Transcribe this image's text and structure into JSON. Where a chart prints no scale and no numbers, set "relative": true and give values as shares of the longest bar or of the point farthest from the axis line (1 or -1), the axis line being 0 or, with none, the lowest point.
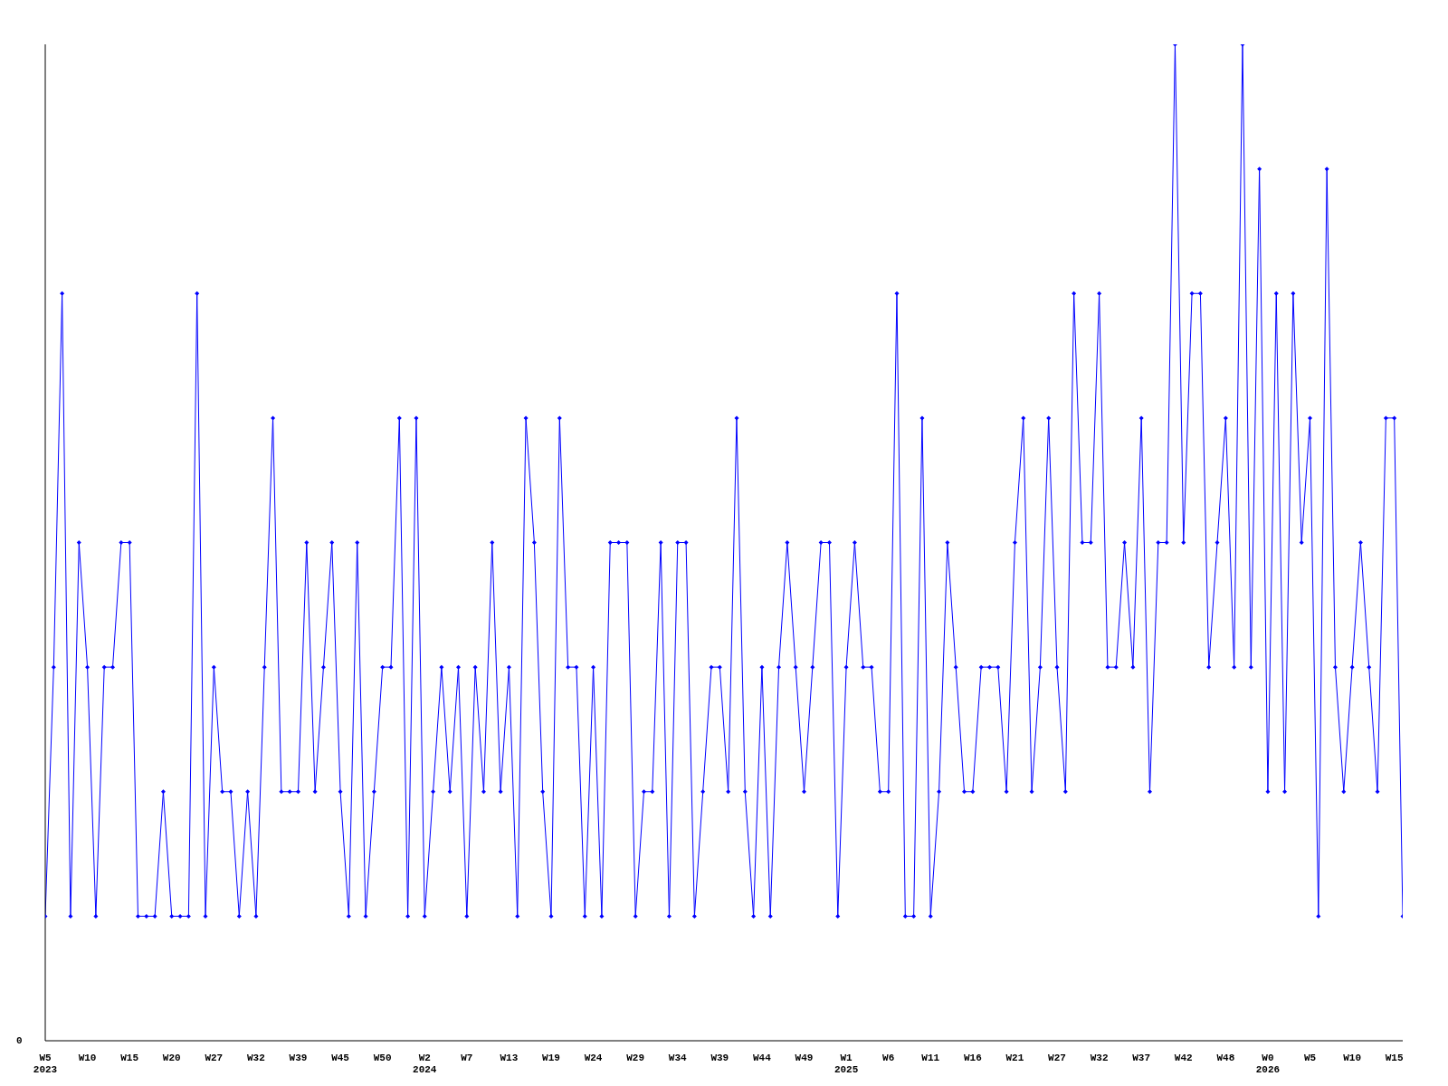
{
  "chart_data": {
    "type": "line",
    "relative": true,
    "marker": "diamond",
    "line_style": "solid",
    "annotations": [
      "0"
    ],
    "categories": [
      "W5\n2023",
      null,
      null,
      null,
      null,
      "W10",
      null,
      null,
      null,
      null,
      "W15",
      null,
      null,
      null,
      null,
      "W20",
      null,
      null,
      null,
      null,
      "W27",
      null,
      null,
      null,
      null,
      "W32",
      null,
      null,
      null,
      null,
      "W39",
      null,
      null,
      null,
      null,
      "W45",
      null,
      null,
      null,
      null,
      "W50",
      null,
      null,
      null,
      null,
      "W2\n2024",
      null,
      null,
      null,
      null,
      "W7",
      null,
      null,
      null,
      null,
      "W13",
      null,
      null,
      null,
      null,
      "W19",
      null,
      null,
      null,
      null,
      "W24",
      null,
      null,
      null,
      null,
      "W29",
      null,
      null,
      null,
      null,
      "W34",
      null,
      null,
      null,
      null,
      "W39",
      null,
      null,
      null,
      null,
      "W44",
      null,
      null,
      null,
      null,
      "W49",
      null,
      null,
      null,
      null,
      "W1\n2025",
      null,
      null,
      null,
      null,
      "W6",
      null,
      null,
      null,
      null,
      "W11",
      null,
      null,
      null,
      null,
      "W16",
      null,
      null,
      null,
      null,
      "W21",
      null,
      null,
      null,
      null,
      "W27",
      null,
      null,
      null,
      null,
      "W32",
      null,
      null,
      null,
      null,
      "W37",
      null,
      null,
      null,
      null,
      "W42",
      null,
      null,
      null,
      null,
      "W48",
      null,
      null,
      null,
      null,
      "W0\n2026",
      null,
      null,
      null,
      null,
      "W5",
      null,
      null,
      null,
      null,
      "W10",
      null,
      null,
      null,
      null,
      "W15",
      null
    ],
    "series": [
      {
        "color": "#0000ff",
        "values": [
          0.125,
          0.375,
          0.75,
          0.125,
          0.5,
          0.375,
          0.125,
          0.375,
          0.375,
          0.5,
          0.5,
          0.125,
          0.125,
          0.125,
          0.25,
          0.125,
          0.125,
          0.125,
          0.75,
          0.125,
          0.375,
          0.25,
          0.25,
          0.125,
          0.25,
          0.125,
          0.375,
          0.625,
          0.25,
          0.25,
          0.25,
          0.5,
          0.25,
          0.375,
          0.5,
          0.25,
          0.125,
          0.5,
          0.125,
          0.25,
          0.375,
          0.375,
          0.625,
          0.125,
          0.625,
          0.125,
          0.25,
          0.375,
          0.25,
          0.375,
          0.125,
          0.375,
          0.25,
          0.5,
          0.25,
          0.375,
          0.125,
          0.625,
          0.5,
          0.25,
          0.125,
          0.625,
          0.375,
          0.375,
          0.125,
          0.375,
          0.125,
          0.5,
          0.5,
          0.5,
          0.125,
          0.25,
          0.25,
          0.5,
          0.125,
          0.5,
          0.5,
          0.125,
          0.25,
          0.375,
          0.375,
          0.25,
          0.625,
          0.25,
          0.125,
          0.375,
          0.125,
          0.375,
          0.5,
          0.375,
          0.25,
          0.375,
          0.5,
          0.5,
          0.125,
          0.375,
          0.5,
          0.375,
          0.375,
          0.25,
          0.25,
          0.75,
          0.125,
          0.125,
          0.625,
          0.125,
          0.25,
          0.5,
          0.375,
          0.25,
          0.25,
          0.375,
          0.375,
          0.375,
          0.25,
          0.5,
          0.625,
          0.25,
          0.375,
          0.625,
          0.375,
          0.25,
          0.75,
          0.5,
          0.5,
          0.75,
          0.375,
          0.375,
          0.5,
          0.375,
          0.625,
          0.25,
          0.5,
          0.5,
          1,
          0.5,
          0.75,
          0.75,
          0.375,
          0.5,
          0.625,
          0.375,
          1,
          0.375,
          0.875,
          0.25,
          0.75,
          0.25,
          0.75,
          0.5,
          0.625,
          0.125,
          0.875,
          0.375,
          0.25,
          0.375,
          0.5,
          0.375,
          0.25,
          0.625,
          0.625,
          0.125
        ]
      }
    ]
  }
}
